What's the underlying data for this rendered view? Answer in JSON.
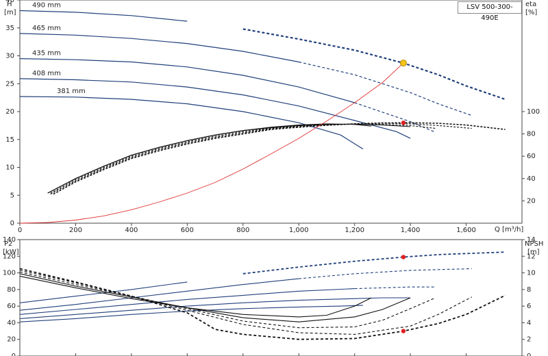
{
  "model": "LSV 500-300-490E",
  "chart_data": [
    {
      "type": "line",
      "panel": "head-efficiency",
      "left_axis": {
        "title": "H",
        "unit": "[m]",
        "range": [
          0,
          40
        ],
        "ticks": [
          "0",
          "5",
          "10",
          "15",
          "20",
          "25",
          "30",
          "35",
          "40"
        ]
      },
      "right_axis": {
        "title": "eta",
        "unit": "[%]",
        "range": [
          0,
          100
        ],
        "ticks": [
          "20",
          "40",
          "60",
          "80",
          "100"
        ]
      },
      "x_axis": {
        "title": "Q [m³/h]",
        "range": [
          0,
          1800
        ],
        "ticks": [
          "0",
          "200",
          "400",
          "600",
          "800",
          "1,000",
          "1,200",
          "1,400",
          "1,600"
        ]
      },
      "grid": false,
      "head_curves": [
        {
          "name": "490 mm",
          "points": [
            [
              0,
              38.1
            ],
            [
              200,
              37.8
            ],
            [
              400,
              37.2
            ],
            [
              600,
              36.2
            ],
            [
              800,
              34.8
            ],
            [
              1000,
              33.0
            ],
            [
              1200,
              31.0
            ],
            [
              1375,
              28.7
            ],
            [
              1500,
              26.6
            ],
            [
              1600,
              24.6
            ],
            [
              1740,
              22.2
            ]
          ]
        },
        {
          "name": "465 mm",
          "points": [
            [
              0,
              34.0
            ],
            [
              200,
              33.7
            ],
            [
              400,
              33.1
            ],
            [
              600,
              32.2
            ],
            [
              800,
              30.8
            ],
            [
              1000,
              28.9
            ],
            [
              1200,
              26.6
            ],
            [
              1400,
              23.4
            ],
            [
              1500,
              21.4
            ],
            [
              1620,
              19.3
            ]
          ]
        },
        {
          "name": "435 mm",
          "points": [
            [
              0,
              29.5
            ],
            [
              200,
              29.3
            ],
            [
              400,
              28.9
            ],
            [
              600,
              28.0
            ],
            [
              800,
              26.5
            ],
            [
              1000,
              24.4
            ],
            [
              1200,
              21.6
            ],
            [
              1400,
              18.2
            ],
            [
              1490,
              16.3
            ]
          ]
        },
        {
          "name": "408 mm",
          "points": [
            [
              0,
              25.9
            ],
            [
              200,
              25.7
            ],
            [
              400,
              25.3
            ],
            [
              600,
              24.4
            ],
            [
              800,
              23.0
            ],
            [
              1000,
              21.0
            ],
            [
              1200,
              18.4
            ],
            [
              1350,
              16.4
            ],
            [
              1400,
              15.2
            ]
          ]
        },
        {
          "name": "381 mm",
          "points": [
            [
              0,
              22.7
            ],
            [
              200,
              22.6
            ],
            [
              400,
              22.2
            ],
            [
              600,
              21.4
            ],
            [
              800,
              20.0
            ],
            [
              1000,
              18.0
            ],
            [
              1150,
              15.8
            ],
            [
              1230,
              13.3
            ]
          ]
        }
      ],
      "efficiency_curves": [
        {
          "points": [
            [
              100,
              27
            ],
            [
              200,
              40
            ],
            [
              300,
              51
            ],
            [
              400,
              61
            ],
            [
              500,
              68
            ],
            [
              600,
              74
            ],
            [
              700,
              79
            ],
            [
              800,
              83
            ],
            [
              900,
              86
            ],
            [
              1000,
              88
            ],
            [
              1100,
              89
            ],
            [
              1200,
              88.5
            ],
            [
              1260,
              87
            ]
          ]
        },
        {
          "points": [
            [
              100,
              27
            ],
            [
              200,
              40
            ],
            [
              300,
              51
            ],
            [
              400,
              61
            ],
            [
              500,
              68
            ],
            [
              600,
              74
            ],
            [
              700,
              79
            ],
            [
              800,
              83
            ],
            [
              900,
              85.5
            ],
            [
              1000,
              87.5
            ],
            [
              1100,
              88.5
            ],
            [
              1200,
              88.8
            ],
            [
              1300,
              88
            ],
            [
              1400,
              86.5
            ]
          ]
        },
        {
          "points": [
            [
              110,
              27
            ],
            [
              200,
              39
            ],
            [
              300,
              50
            ],
            [
              400,
              60
            ],
            [
              500,
              67
            ],
            [
              600,
              73
            ],
            [
              700,
              78
            ],
            [
              800,
              82
            ],
            [
              900,
              85
            ],
            [
              1000,
              87
            ],
            [
              1100,
              88.2
            ],
            [
              1200,
              88.8
            ],
            [
              1300,
              88.5
            ],
            [
              1400,
              87.5
            ],
            [
              1490,
              85
            ]
          ]
        },
        {
          "points": [
            [
              110,
              26
            ],
            [
              200,
              38
            ],
            [
              300,
              49
            ],
            [
              400,
              59
            ],
            [
              500,
              66
            ],
            [
              600,
              72
            ],
            [
              700,
              77
            ],
            [
              800,
              81
            ],
            [
              900,
              84.5
            ],
            [
              1000,
              86.5
            ],
            [
              1100,
              88
            ],
            [
              1200,
              89
            ],
            [
              1300,
              89.5
            ],
            [
              1400,
              89
            ],
            [
              1500,
              87.5
            ],
            [
              1620,
              85
            ]
          ]
        },
        {
          "points": [
            [
              120,
              26
            ],
            [
              200,
              37
            ],
            [
              300,
              48
            ],
            [
              400,
              58
            ],
            [
              500,
              65
            ],
            [
              600,
              71
            ],
            [
              700,
              76
            ],
            [
              800,
              80
            ],
            [
              900,
              84
            ],
            [
              1000,
              86
            ],
            [
              1100,
              87.8
            ],
            [
              1200,
              89
            ],
            [
              1300,
              89.8
            ],
            [
              1400,
              90
            ],
            [
              1500,
              89.5
            ],
            [
              1600,
              88
            ],
            [
              1740,
              84
            ]
          ]
        }
      ],
      "system_curve": {
        "points": [
          [
            0,
            0
          ],
          [
            100,
            0.12
          ],
          [
            200,
            0.55
          ],
          [
            300,
            1.3
          ],
          [
            400,
            2.4
          ],
          [
            500,
            3.8
          ],
          [
            600,
            5.4
          ],
          [
            700,
            7.3
          ],
          [
            800,
            9.7
          ],
          [
            900,
            12.4
          ],
          [
            1000,
            15.2
          ],
          [
            1100,
            18.3
          ],
          [
            1200,
            21.6
          ],
          [
            1300,
            25.2
          ],
          [
            1375,
            28.7
          ]
        ]
      },
      "duty_point": {
        "q": 1375,
        "h": 28.7
      },
      "efficiency_point": {
        "q": 1375,
        "eta": 90
      }
    },
    {
      "type": "line",
      "panel": "power-npsh",
      "left_axis": {
        "title": "P2",
        "unit": "[kW]",
        "range": [
          0,
          140
        ],
        "ticks": [
          "0",
          "20",
          "40",
          "60",
          "80",
          "100",
          "120",
          "140"
        ]
      },
      "right_axis": {
        "title": "NPSH",
        "unit": "[m]",
        "range": [
          0,
          14
        ],
        "ticks": [
          "0",
          "2",
          "4",
          "6",
          "8",
          "10",
          "12",
          "14"
        ]
      },
      "x_axis": {
        "range": [
          0,
          1800
        ]
      },
      "power_curves": [
        {
          "name": "490 mm",
          "points": [
            [
              0,
              64
            ],
            [
              200,
              72
            ],
            [
              400,
              80
            ],
            [
              600,
              89
            ],
            [
              800,
              99
            ],
            [
              1000,
              107
            ],
            [
              1200,
              114
            ],
            [
              1375,
              119
            ],
            [
              1500,
              122
            ],
            [
              1740,
              125
            ]
          ]
        },
        {
          "name": "465 mm",
          "points": [
            [
              0,
              55
            ],
            [
              200,
              62
            ],
            [
              400,
              70
            ],
            [
              600,
              78
            ],
            [
              800,
              86
            ],
            [
              1000,
              93
            ],
            [
              1200,
              99
            ],
            [
              1400,
              103
            ],
            [
              1620,
              105
            ]
          ]
        },
        {
          "name": "435 mm",
          "points": [
            [
              0,
              50
            ],
            [
              200,
              56
            ],
            [
              400,
              62
            ],
            [
              600,
              68
            ],
            [
              800,
              73
            ],
            [
              1000,
              78
            ],
            [
              1200,
              81
            ],
            [
              1400,
              83
            ],
            [
              1490,
              83
            ]
          ]
        },
        {
          "name": "408 mm",
          "points": [
            [
              0,
              45
            ],
            [
              200,
              50
            ],
            [
              400,
              55
            ],
            [
              600,
              60
            ],
            [
              800,
              64
            ],
            [
              1000,
              67
            ],
            [
              1200,
              69
            ],
            [
              1300,
              70
            ],
            [
              1400,
              70
            ]
          ]
        },
        {
          "name": "381 mm",
          "points": [
            [
              0,
              41
            ],
            [
              200,
              45
            ],
            [
              400,
              50
            ],
            [
              600,
              54
            ],
            [
              800,
              57
            ],
            [
              1000,
              59
            ],
            [
              1150,
              60
            ],
            [
              1230,
              61
            ]
          ]
        }
      ],
      "npsh_curves": [
        {
          "points": [
            [
              0,
              9.6
            ],
            [
              200,
              8.2
            ],
            [
              400,
              6.9
            ],
            [
              600,
              5.8
            ],
            [
              800,
              5.0
            ],
            [
              1000,
              4.7
            ],
            [
              1100,
              4.9
            ],
            [
              1200,
              6.0
            ],
            [
              1260,
              7.0
            ]
          ]
        },
        {
          "points": [
            [
              0,
              9.9
            ],
            [
              200,
              8.4
            ],
            [
              400,
              7.1
            ],
            [
              600,
              5.8
            ],
            [
              800,
              4.6
            ],
            [
              1000,
              4.1
            ],
            [
              1200,
              4.7
            ],
            [
              1300,
              5.6
            ],
            [
              1400,
              7.0
            ]
          ]
        },
        {
          "points": [
            [
              0,
              10.1
            ],
            [
              200,
              8.6
            ],
            [
              400,
              7.2
            ],
            [
              600,
              5.7
            ],
            [
              800,
              4.2
            ],
            [
              1000,
              3.4
            ],
            [
              1200,
              3.5
            ],
            [
              1300,
              4.3
            ],
            [
              1400,
              5.7
            ],
            [
              1490,
              7.0
            ]
          ]
        },
        {
          "points": [
            [
              0,
              10.3
            ],
            [
              200,
              8.8
            ],
            [
              400,
              7.2
            ],
            [
              600,
              5.5
            ],
            [
              800,
              3.8
            ],
            [
              1000,
              2.8
            ],
            [
              1200,
              2.6
            ],
            [
              1400,
              3.6
            ],
            [
              1500,
              5.0
            ],
            [
              1620,
              7.1
            ]
          ]
        },
        {
          "points": [
            [
              0,
              10.5
            ],
            [
              200,
              8.9
            ],
            [
              400,
              7.2
            ],
            [
              600,
              5.2
            ],
            [
              700,
              3.2
            ],
            [
              800,
              2.6
            ],
            [
              1000,
              2.0
            ],
            [
              1200,
              2.1
            ],
            [
              1375,
              3.0
            ],
            [
              1500,
              3.9
            ],
            [
              1600,
              5.0
            ],
            [
              1740,
              7.3
            ]
          ]
        }
      ],
      "power_point": {
        "q": 1375,
        "p2": 119
      },
      "npsh_point": {
        "q": 1375,
        "npsh": 3.0
      }
    }
  ]
}
